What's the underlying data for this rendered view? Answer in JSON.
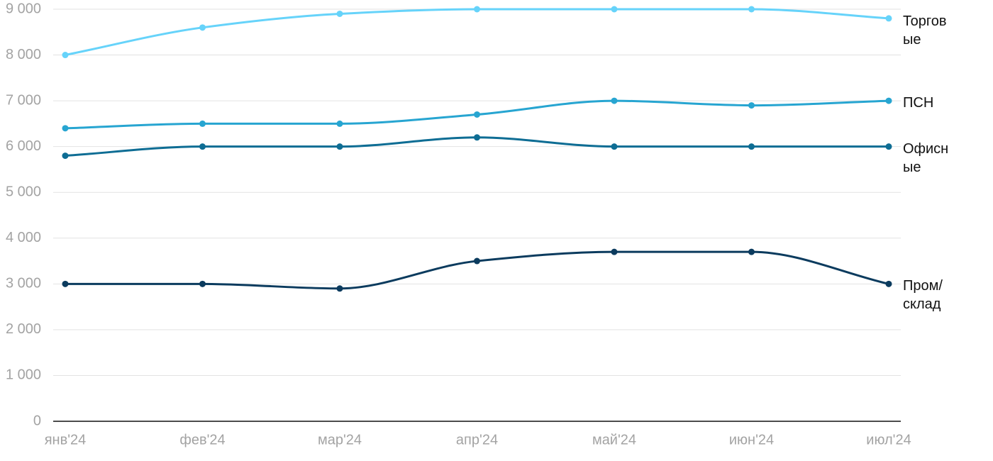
{
  "chart_data": {
    "type": "line",
    "categories": [
      "янв'24",
      "фев'24",
      "мар'24",
      "апр'24",
      "май'24",
      "июн'24",
      "июл'24"
    ],
    "series": [
      {
        "name": "Торговые",
        "color": "#66d3fa",
        "values": [
          8000,
          8600,
          8900,
          9000,
          9000,
          9000,
          8800
        ]
      },
      {
        "name": "ПСН",
        "color": "#27a5d1",
        "values": [
          6400,
          6500,
          6500,
          6700,
          7000,
          6900,
          7000
        ]
      },
      {
        "name": "Офисные",
        "color": "#0e6d94",
        "values": [
          5800,
          6000,
          6000,
          6200,
          6000,
          6000,
          6000
        ]
      },
      {
        "name": "Пром/склад",
        "color": "#0b3b5e",
        "values": [
          3000,
          3000,
          2900,
          3500,
          3700,
          3700,
          3000
        ]
      }
    ],
    "ylim": [
      0,
      9000
    ],
    "yticks": [
      0,
      {
        "value": 1000,
        "label": "1 000"
      },
      {
        "value": 2000,
        "label": "2 000"
      },
      {
        "value": 3000,
        "label": "3 000"
      },
      {
        "value": 4000,
        "label": "4 000"
      },
      {
        "value": 5000,
        "label": "5 000"
      },
      {
        "value": 6000,
        "label": "6 000"
      },
      {
        "value": 7000,
        "label": "7 000"
      },
      {
        "value": 8000,
        "label": "8 000"
      },
      {
        "value": 9000,
        "label": "9 000"
      }
    ],
    "grid": true,
    "smooth": true
  }
}
